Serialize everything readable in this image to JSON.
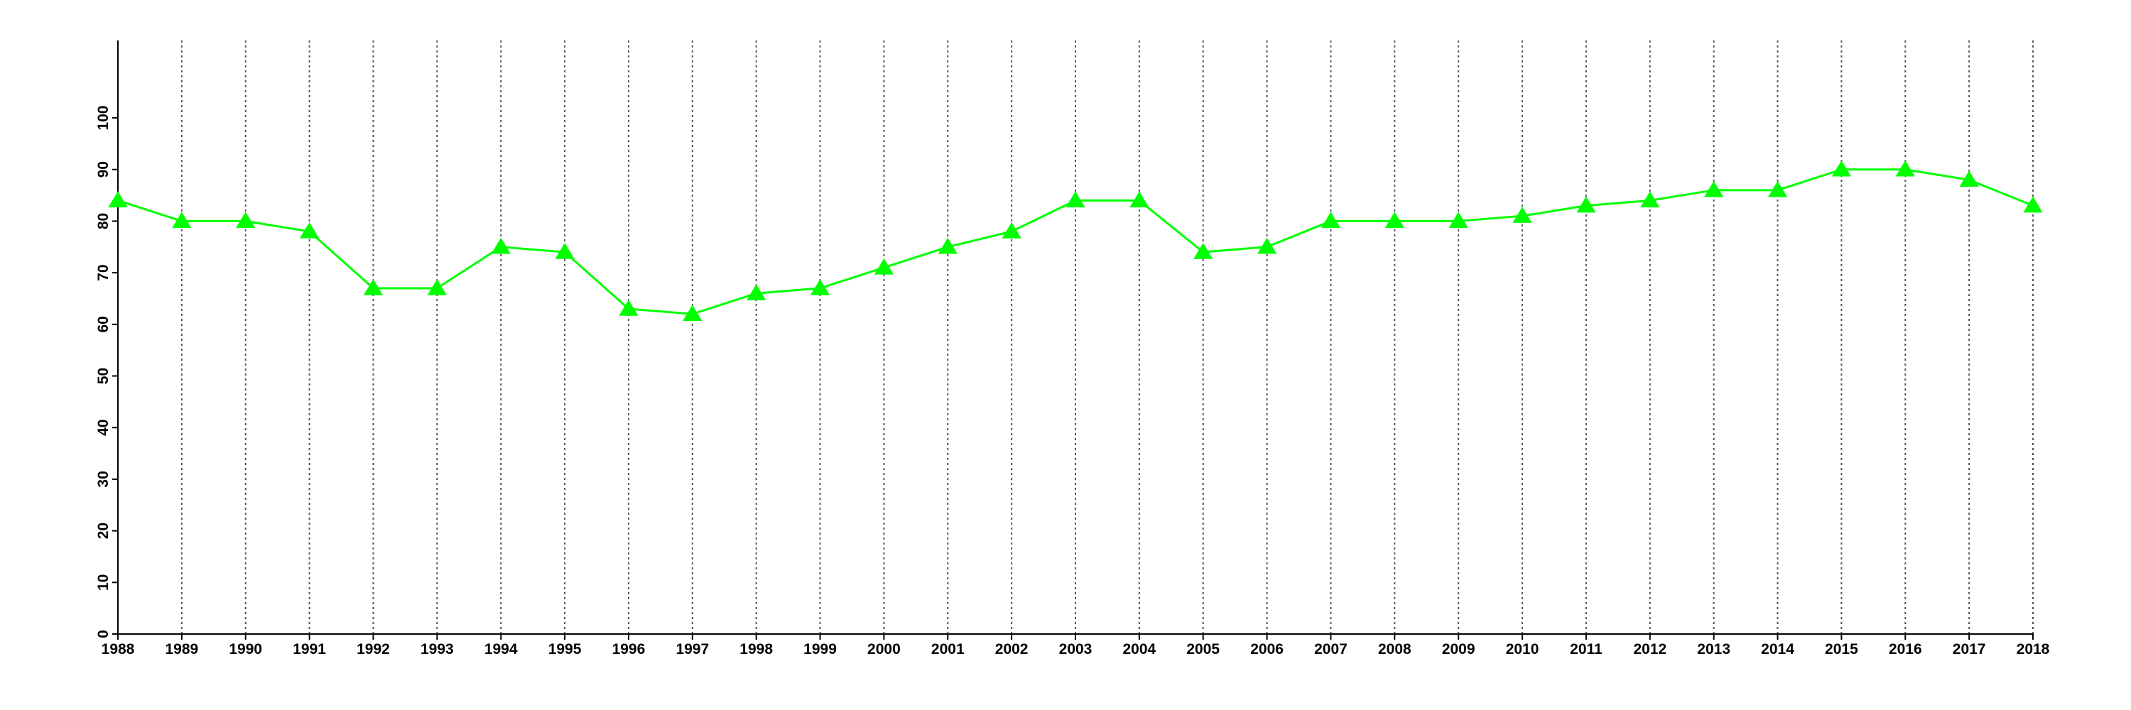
{
  "chart_data": {
    "type": "line",
    "categories": [
      "1988",
      "1989",
      "1990",
      "1991",
      "1992",
      "1993",
      "1994",
      "1995",
      "1996",
      "1997",
      "1998",
      "1999",
      "2000",
      "2001",
      "2002",
      "2003",
      "2004",
      "2005",
      "2006",
      "2007",
      "2008",
      "2009",
      "2010",
      "2011",
      "2012",
      "2013",
      "2014",
      "2015",
      "2016",
      "2017",
      "2018"
    ],
    "series": [
      {
        "color": "#00ff00",
        "values": [
          84,
          80,
          80,
          78,
          67,
          67,
          75,
          74,
          63,
          62,
          66,
          67,
          71,
          75,
          78,
          84,
          84,
          74,
          75,
          80,
          80,
          80,
          81,
          83,
          84,
          86,
          86,
          90,
          90,
          88,
          83
        ]
      }
    ],
    "ylim": [
      0,
      115
    ],
    "yticks": [
      0,
      10,
      20,
      30,
      40,
      50,
      60,
      70,
      80,
      90,
      100
    ],
    "grid": true
  }
}
